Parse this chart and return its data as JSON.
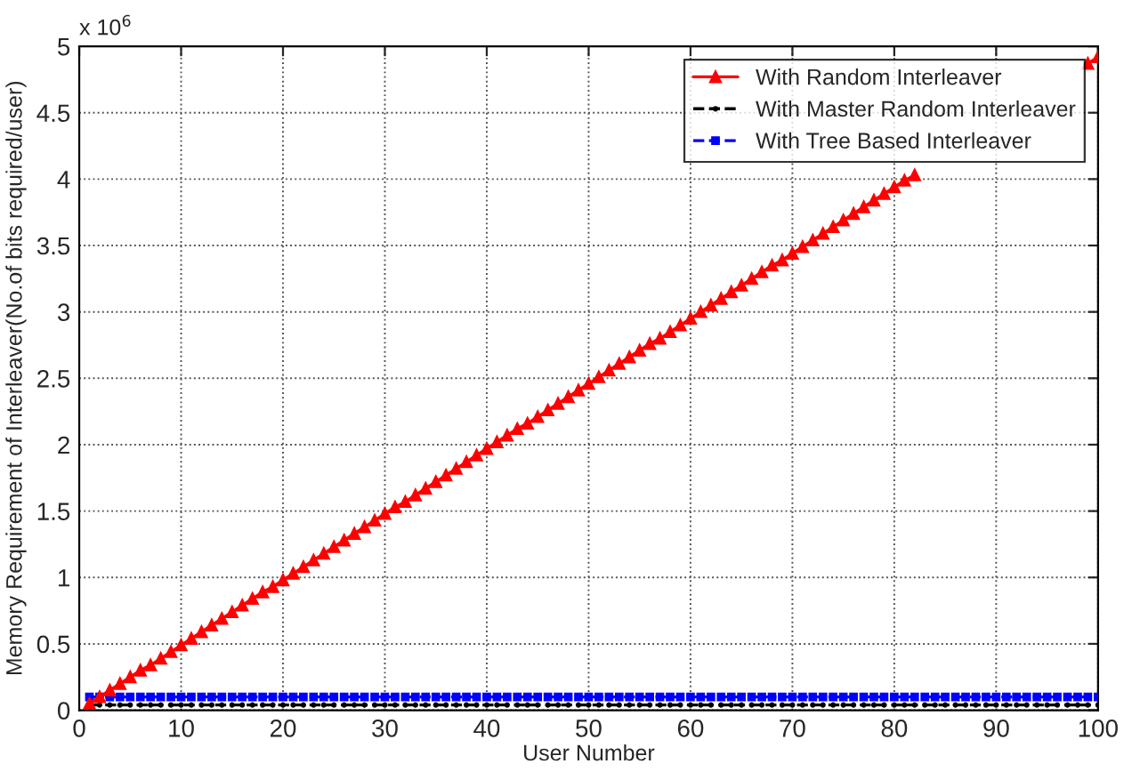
{
  "chart_data": {
    "type": "line",
    "xlabel": "User Number",
    "ylabel": "Memory Requirement of Interleaver(No.of bits required/user)",
    "annotations": [
      "x 10$^{6}$"
    ],
    "x": [
      1,
      2,
      3,
      4,
      5,
      6,
      7,
      8,
      9,
      10,
      11,
      12,
      13,
      14,
      15,
      16,
      17,
      18,
      19,
      20,
      21,
      22,
      23,
      24,
      25,
      26,
      27,
      28,
      29,
      30,
      31,
      32,
      33,
      34,
      35,
      36,
      37,
      38,
      39,
      40,
      41,
      42,
      43,
      44,
      45,
      46,
      47,
      48,
      49,
      50,
      51,
      52,
      53,
      54,
      55,
      56,
      57,
      58,
      59,
      60,
      61,
      62,
      63,
      64,
      65,
      66,
      67,
      68,
      69,
      70,
      71,
      72,
      73,
      74,
      75,
      76,
      77,
      78,
      79,
      80,
      81,
      82,
      83,
      84,
      85,
      86,
      87,
      88,
      89,
      90,
      91,
      92,
      93,
      94,
      95,
      96,
      97,
      98,
      99,
      100
    ],
    "series": [
      {
        "name": "With Random Interleaver",
        "color": "#ff0000",
        "marker": "triangle",
        "line_style": "solid",
        "values": [
          0.05,
          0.1,
          0.15,
          0.2,
          0.25,
          0.3,
          0.34,
          0.39,
          0.44,
          0.49,
          0.54,
          0.59,
          0.64,
          0.69,
          0.74,
          0.79,
          0.84,
          0.89,
          0.93,
          0.98,
          1.03,
          1.08,
          1.13,
          1.18,
          1.23,
          1.28,
          1.33,
          1.38,
          1.43,
          1.48,
          1.53,
          1.57,
          1.62,
          1.67,
          1.72,
          1.77,
          1.82,
          1.87,
          1.92,
          1.97,
          2.02,
          2.07,
          2.12,
          2.16,
          2.21,
          2.26,
          2.31,
          2.36,
          2.41,
          2.46,
          2.51,
          2.56,
          2.61,
          2.66,
          2.71,
          2.76,
          2.8,
          2.85,
          2.9,
          2.95,
          3.0,
          3.05,
          3.1,
          3.15,
          3.2,
          3.25,
          3.3,
          3.35,
          3.39,
          3.44,
          3.49,
          3.54,
          3.59,
          3.64,
          3.69,
          3.74,
          3.79,
          3.84,
          3.89,
          3.94,
          3.99,
          4.03,
          null,
          null,
          null,
          null,
          null,
          null,
          null,
          null,
          null,
          null,
          null,
          null,
          null,
          null,
          null,
          null,
          4.87,
          4.92
        ]
      },
      {
        "name": "With Master Random Interleaver",
        "color": "#000000",
        "marker": "circle",
        "line_style": "dashed",
        "values": [
          0.04,
          0.04,
          0.04,
          0.04,
          0.04,
          0.04,
          0.04,
          0.04,
          0.04,
          0.04,
          0.04,
          0.04,
          0.04,
          0.04,
          0.04,
          0.04,
          0.04,
          0.04,
          0.04,
          0.04,
          0.04,
          0.04,
          0.04,
          0.04,
          0.04,
          0.04,
          0.04,
          0.04,
          0.04,
          0.04,
          0.04,
          0.04,
          0.04,
          0.04,
          0.04,
          0.04,
          0.04,
          0.04,
          0.04,
          0.04,
          0.04,
          0.04,
          0.04,
          0.04,
          0.04,
          0.04,
          0.04,
          0.04,
          0.04,
          0.04,
          0.04,
          0.04,
          0.04,
          0.04,
          0.04,
          0.04,
          0.04,
          0.04,
          0.04,
          0.04,
          0.04,
          0.04,
          0.04,
          0.04,
          0.04,
          0.04,
          0.04,
          0.04,
          0.04,
          0.04,
          0.04,
          0.04,
          0.04,
          0.04,
          0.04,
          0.04,
          0.04,
          0.04,
          0.04,
          0.04,
          0.04,
          0.04,
          0.04,
          0.04,
          0.04,
          0.04,
          0.04,
          0.04,
          0.04,
          0.04,
          0.04,
          0.04,
          0.04,
          0.04,
          0.04,
          0.04,
          0.04,
          0.04,
          0.04,
          0.04
        ]
      },
      {
        "name": "With Tree Based Interleaver",
        "color": "#0000ff",
        "marker": "square",
        "line_style": "dashed",
        "values": [
          0.1,
          0.1,
          0.1,
          0.1,
          0.1,
          0.1,
          0.1,
          0.1,
          0.1,
          0.1,
          0.1,
          0.1,
          0.1,
          0.1,
          0.1,
          0.1,
          0.1,
          0.1,
          0.1,
          0.1,
          0.1,
          0.1,
          0.1,
          0.1,
          0.1,
          0.1,
          0.1,
          0.1,
          0.1,
          0.1,
          0.1,
          0.1,
          0.1,
          0.1,
          0.1,
          0.1,
          0.1,
          0.1,
          0.1,
          0.1,
          0.1,
          0.1,
          0.1,
          0.1,
          0.1,
          0.1,
          0.1,
          0.1,
          0.1,
          0.1,
          0.1,
          0.1,
          0.1,
          0.1,
          0.1,
          0.1,
          0.1,
          0.1,
          0.1,
          0.1,
          0.1,
          0.1,
          0.1,
          0.1,
          0.1,
          0.1,
          0.1,
          0.1,
          0.1,
          0.1,
          0.1,
          0.1,
          0.1,
          0.1,
          0.1,
          0.1,
          0.1,
          0.1,
          0.1,
          0.1,
          0.1,
          0.1,
          0.1,
          0.1,
          0.1,
          0.1,
          0.1,
          0.1,
          0.1,
          0.1,
          0.1,
          0.1,
          0.1,
          0.1,
          0.1,
          0.1,
          0.1,
          0.1,
          0.1,
          0.1
        ]
      }
    ],
    "xlim": [
      0,
      100
    ],
    "xticks": [
      0,
      10,
      20,
      30,
      40,
      50,
      60,
      70,
      80,
      90,
      100
    ],
    "ylim": [
      0,
      5
    ],
    "yticks": [
      0,
      0.5,
      1,
      1.5,
      2,
      2.5,
      3,
      3.5,
      4,
      4.5,
      5
    ],
    "grid": true,
    "legend": "top right"
  }
}
